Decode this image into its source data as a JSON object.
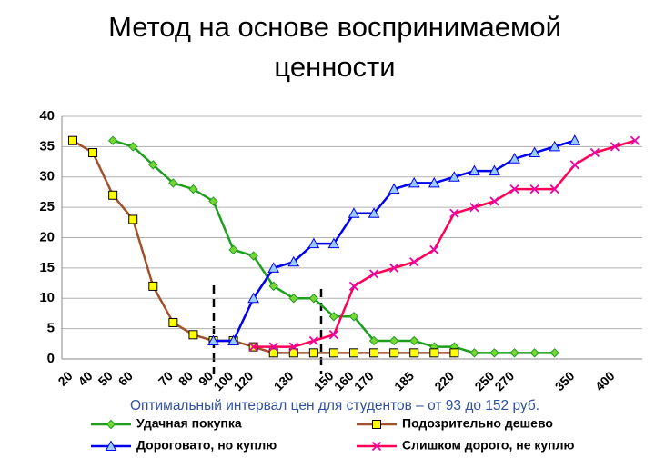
{
  "chart_data": {
    "type": "line",
    "title": [
      "Метод на основе воспринимаемой",
      "ценности"
    ],
    "annotation": "Оптимальный интервал цен для студентов – от 93 до 152 руб.",
    "categories": [
      "20",
      "40",
      "50",
      "60",
      null,
      "70",
      "80",
      "90",
      "100",
      "120",
      null,
      "130",
      null,
      "150",
      "160",
      "170",
      null,
      "185",
      null,
      "220",
      null,
      "250",
      "270",
      null,
      null,
      "350",
      null,
      "400",
      null
    ],
    "ylim": [
      0,
      40
    ],
    "yticks": [
      0,
      5,
      10,
      15,
      20,
      25,
      30,
      35,
      40
    ],
    "grid": true,
    "legend": "bottom",
    "series": [
      {
        "name": "Удачная покупка",
        "color": "#1e9e1e",
        "marker": "diamond",
        "marker_color": "#77d633",
        "values": [
          null,
          null,
          36,
          35,
          32,
          29,
          28,
          26,
          18,
          17,
          12,
          10,
          10,
          7,
          7,
          3,
          3,
          3,
          2,
          2,
          1,
          1,
          1,
          1,
          1,
          null,
          null,
          null,
          null
        ]
      },
      {
        "name": "Подозрительно дешево",
        "color": "#a0522d",
        "marker": "square",
        "marker_color": "#ffff00",
        "values": [
          36,
          34,
          27,
          23,
          12,
          6,
          4,
          3,
          3,
          2,
          1,
          1,
          1,
          1,
          1,
          1,
          1,
          1,
          1,
          1,
          null,
          null,
          null,
          null,
          null,
          null,
          null,
          null,
          null
        ]
      },
      {
        "name": "Дороговато, но куплю",
        "color": "#0000ee",
        "marker": "triangle",
        "marker_color": "#99ccff",
        "values": [
          null,
          null,
          null,
          null,
          null,
          null,
          null,
          3,
          3,
          10,
          15,
          16,
          19,
          19,
          24,
          24,
          28,
          29,
          29,
          30,
          31,
          31,
          33,
          34,
          35,
          36,
          null,
          null,
          null
        ]
      },
      {
        "name": "Слишком дорого, не куплю",
        "color": "#ff0055",
        "marker": "cross",
        "marker_color": "#ee00aa",
        "values": [
          null,
          null,
          null,
          null,
          null,
          null,
          null,
          null,
          null,
          2,
          2,
          2,
          3,
          4,
          12,
          14,
          15,
          16,
          18,
          24,
          25,
          26,
          28,
          28,
          28,
          32,
          34,
          35,
          36
        ]
      }
    ]
  }
}
